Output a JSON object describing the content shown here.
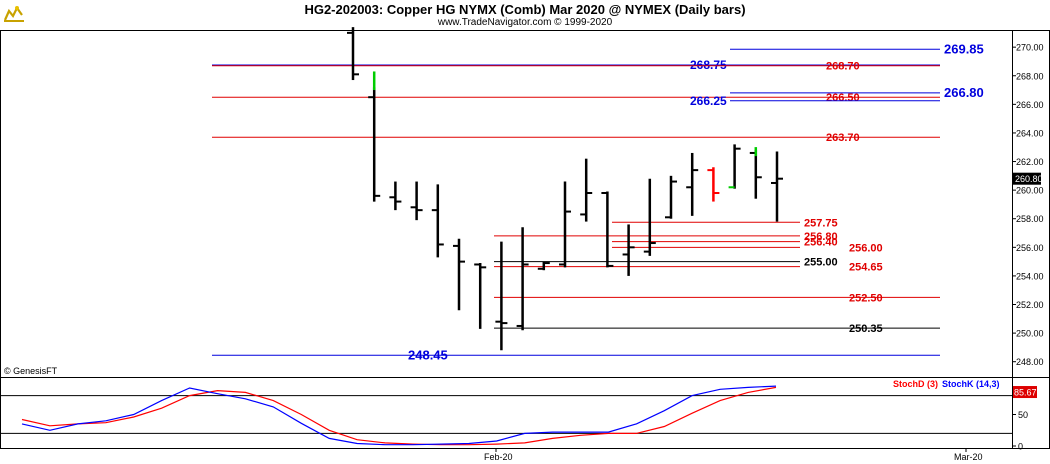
{
  "header": {
    "title": "HG2-202003:  Copper HG NYMX (Comb) Mar 2020 @ NYMEX  (Daily bars)",
    "subtitle": "www.TradeNavigator.com © 1999-2020",
    "copyright": "© GenesisFT",
    "logo_icon": "genesis-trade-navigator-logo"
  },
  "colors": {
    "bar": "#000000",
    "up_tick": "#00cc00",
    "down_bar": "#ff0000",
    "red_line": "#e00000",
    "blue_line": "#0000dd",
    "black_line": "#000000",
    "stoch_k": "#0000ff",
    "stoch_d": "#ff0000",
    "last_price_bg": "#000000",
    "stoch_value_bg": "#dd0000"
  },
  "chart_data": [
    {
      "type": "ohlc",
      "x_labels": [
        "Feb-20",
        "Mar-20"
      ],
      "ylim": [
        247.0,
        271.2
      ],
      "y_ticks": [
        "248.00",
        "250.00",
        "252.00",
        "254.00",
        "256.00",
        "258.00",
        "260.00",
        "262.00",
        "264.00",
        "266.00",
        "268.00",
        "270.00"
      ],
      "last_price": "260.80",
      "bars": [
        {
          "o": 271.0,
          "h": 271.4,
          "l": 267.7,
          "c": 268.1
        },
        {
          "o": 266.5,
          "h": 267.2,
          "l": 259.2,
          "c": 259.6
        },
        {
          "o": 259.5,
          "h": 260.6,
          "l": 258.6,
          "c": 259.2
        },
        {
          "o": 258.8,
          "h": 260.6,
          "l": 257.9,
          "c": 258.6
        },
        {
          "o": 258.6,
          "h": 260.4,
          "l": 255.3,
          "c": 256.2
        },
        {
          "o": 256.1,
          "h": 256.6,
          "l": 251.6,
          "c": 255.0
        },
        {
          "o": 254.8,
          "h": 254.9,
          "l": 250.3,
          "c": 254.6
        },
        {
          "o": 250.8,
          "h": 256.4,
          "l": 248.8,
          "c": 250.7
        },
        {
          "o": 250.5,
          "h": 257.4,
          "l": 250.2,
          "c": 254.8
        },
        {
          "o": 254.5,
          "h": 255.0,
          "l": 254.4,
          "c": 254.9
        },
        {
          "o": 254.8,
          "h": 260.6,
          "l": 254.6,
          "c": 258.5
        },
        {
          "o": 258.3,
          "h": 262.2,
          "l": 257.8,
          "c": 259.8
        },
        {
          "o": 259.8,
          "h": 259.9,
          "l": 254.6,
          "c": 254.7
        },
        {
          "o": 255.5,
          "h": 257.6,
          "l": 254.0,
          "c": 256.0
        },
        {
          "o": 255.7,
          "h": 260.8,
          "l": 255.4,
          "c": 256.3
        },
        {
          "o": 258.1,
          "h": 261.0,
          "l": 258.0,
          "c": 260.6
        },
        {
          "o": 260.2,
          "h": 262.6,
          "l": 258.2,
          "c": 261.4
        },
        {
          "o": 261.4,
          "h": 261.6,
          "l": 259.2,
          "c": 259.8,
          "down": true
        },
        {
          "o": 260.2,
          "h": 263.2,
          "l": 260.1,
          "c": 262.9,
          "green_open": true
        },
        {
          "o": 262.6,
          "h": 262.8,
          "l": 259.4,
          "c": 260.9,
          "green_high": true
        },
        {
          "o": 260.5,
          "h": 262.7,
          "l": 257.8,
          "c": 260.8
        }
      ],
      "levels": [
        {
          "value": 269.85,
          "label": "269.85",
          "color": "blue"
        },
        {
          "value": 268.75,
          "label": "268.75",
          "color": "blue"
        },
        {
          "value": 268.7,
          "label": "268.70",
          "color": "red"
        },
        {
          "value": 266.8,
          "label": "266.80",
          "color": "blue"
        },
        {
          "value": 266.5,
          "label": "266.50",
          "color": "red"
        },
        {
          "value": 266.25,
          "label": "266.25",
          "color": "blue"
        },
        {
          "value": 263.7,
          "label": "263.70",
          "color": "red"
        },
        {
          "value": 257.75,
          "label": "257.75",
          "color": "red"
        },
        {
          "value": 256.8,
          "label": "256.80",
          "color": "red"
        },
        {
          "value": 256.4,
          "label": "256.40",
          "color": "red"
        },
        {
          "value": 256.0,
          "label": "256.00",
          "color": "red"
        },
        {
          "value": 255.0,
          "label": "255.00",
          "color": "black"
        },
        {
          "value": 254.65,
          "label": "254.65",
          "color": "red"
        },
        {
          "value": 252.5,
          "label": "252.50",
          "color": "red"
        },
        {
          "value": 250.35,
          "label": "250.35",
          "color": "black"
        },
        {
          "value": 248.45,
          "label": "248.45",
          "color": "blue"
        }
      ]
    },
    {
      "type": "line",
      "ylim": [
        0,
        100
      ],
      "y_ticks": [
        "0",
        "50"
      ],
      "reference_lines": [
        20,
        80
      ],
      "last_value": "85.67",
      "series": [
        {
          "name": "StochD (3)",
          "color": "red",
          "values": [
            42,
            32,
            35,
            37,
            46,
            60,
            80,
            88,
            85,
            72,
            50,
            25,
            10,
            5,
            3,
            2,
            2,
            3,
            5,
            12,
            17,
            20,
            20,
            31,
            52,
            72,
            85,
            93
          ]
        },
        {
          "name": "StochK (14,3)",
          "color": "blue",
          "values": [
            35,
            25,
            35,
            40,
            50,
            72,
            92,
            83,
            75,
            62,
            36,
            12,
            4,
            2,
            2,
            3,
            4,
            8,
            20,
            22,
            22,
            22,
            35,
            56,
            80,
            90,
            93,
            95
          ]
        }
      ]
    }
  ]
}
